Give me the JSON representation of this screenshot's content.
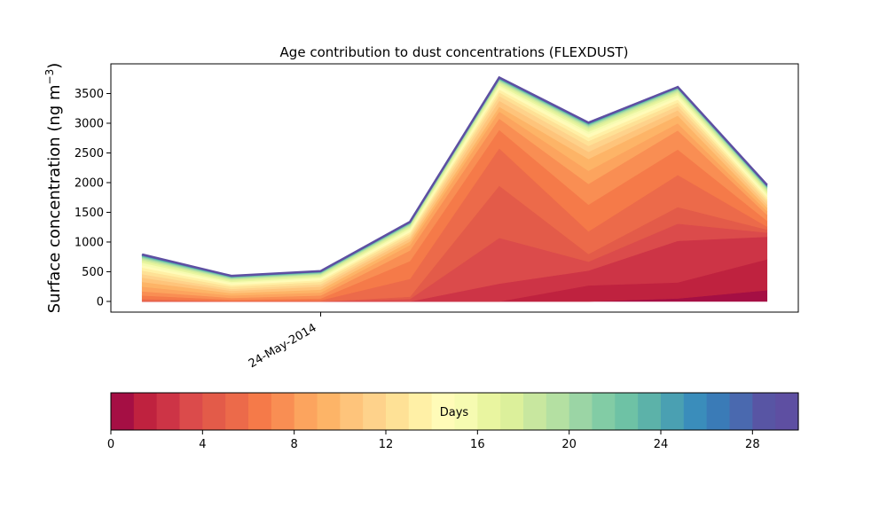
{
  "chart_data": {
    "type": "area",
    "title": "Age contribution to dust concentrations (FLEXDUST)",
    "ylabel": "Surface concentration (ng m",
    "ylabel_sup": "−3",
    "ylabel_close": ")",
    "xlabel": "",
    "x_tick_labels": [
      "24-May-2014"
    ],
    "yticks": [
      0,
      500,
      1000,
      1500,
      2000,
      2500,
      3000,
      3500
    ],
    "ylim": [
      -180,
      4000
    ],
    "x_positions": [
      0,
      1,
      2,
      3,
      4,
      5,
      6,
      7
    ],
    "xlim": [
      -0.35,
      7.35
    ],
    "x_tick_position": 2,
    "totals": [
      790,
      430,
      510,
      1340,
      3770,
      3010,
      3610,
      1960
    ],
    "layer_count": 30,
    "stack_legend": "cumulative totals; layer i shows contribution of particles aged i–(i+1) days",
    "colorbar": {
      "label": "Days",
      "range": [
        0,
        30
      ],
      "ticks": [
        0,
        4,
        8,
        12,
        16,
        20,
        24,
        28
      ],
      "colors": [
        "#a50f44",
        "#bf223f",
        "#cd3446",
        "#db4b4b",
        "#e35b49",
        "#ec6a4a",
        "#f57a49",
        "#f98e53",
        "#fca45e",
        "#fdb467",
        "#fec47b",
        "#fed28b",
        "#fee196",
        "#fff0a6",
        "#fffbb8",
        "#f6fbb1",
        "#e9f5a0",
        "#dcf09b",
        "#c8e79f",
        "#b4e0a2",
        "#9bd5a5",
        "#82cca5",
        "#6ec2a5",
        "#5cb2a9",
        "#4aa0b2",
        "#3a8dbb",
        "#3a7bb7",
        "#4a69af",
        "#5855a4",
        "#5e4fa2"
      ]
    },
    "cumulative": [
      [
        0,
        0,
        0,
        0,
        0,
        0,
        50,
        190
      ],
      [
        0,
        0,
        0,
        0,
        0,
        270,
        320,
        710
      ],
      [
        0,
        0,
        0,
        0,
        300,
        520,
        1020,
        1090
      ],
      [
        0,
        0,
        0,
        40,
        1070,
        670,
        1310,
        1160
      ],
      [
        10,
        0,
        0,
        80,
        1950,
        800,
        1590,
        1210
      ],
      [
        40,
        10,
        20,
        380,
        2580,
        1180,
        2130,
        1260
      ],
      [
        100,
        30,
        50,
        680,
        2890,
        1630,
        2560,
        1360
      ],
      [
        170,
        60,
        100,
        860,
        3080,
        1980,
        2880,
        1460
      ],
      [
        250,
        100,
        150,
        950,
        3200,
        2200,
        3000,
        1520
      ],
      [
        330,
        140,
        200,
        1010,
        3280,
        2400,
        3130,
        1580
      ],
      [
        400,
        180,
        250,
        1060,
        3380,
        2520,
        3220,
        1630
      ],
      [
        460,
        210,
        290,
        1100,
        3460,
        2620,
        3290,
        1680
      ],
      [
        520,
        250,
        330,
        1140,
        3520,
        2700,
        3350,
        1720
      ],
      [
        570,
        280,
        360,
        1170,
        3570,
        2760,
        3400,
        1760
      ],
      [
        610,
        310,
        390,
        1200,
        3610,
        2820,
        3440,
        1790
      ],
      [
        650,
        330,
        410,
        1230,
        3640,
        2860,
        3480,
        1820
      ],
      [
        680,
        350,
        430,
        1250,
        3670,
        2890,
        3510,
        1850
      ],
      [
        700,
        370,
        450,
        1270,
        3690,
        2920,
        3530,
        1870
      ],
      [
        720,
        380,
        460,
        1285,
        3705,
        2940,
        3550,
        1890
      ],
      [
        735,
        390,
        470,
        1295,
        3720,
        2955,
        3565,
        1905
      ],
      [
        745,
        400,
        480,
        1305,
        3730,
        2965,
        3575,
        1915
      ],
      [
        755,
        405,
        485,
        1312,
        3738,
        2975,
        3583,
        1925
      ],
      [
        762,
        410,
        490,
        1318,
        3745,
        2983,
        3590,
        1932
      ],
      [
        768,
        415,
        494,
        1323,
        3750,
        2989,
        3595,
        1938
      ],
      [
        773,
        419,
        498,
        1327,
        3755,
        2994,
        3599,
        1943
      ],
      [
        778,
        422,
        501,
        1331,
        3759,
        2998,
        3602,
        1948
      ],
      [
        782,
        425,
        504,
        1334,
        3763,
        3002,
        3605,
        1952
      ],
      [
        785,
        427,
        506,
        1336,
        3766,
        3005,
        3607,
        1955
      ],
      [
        788,
        429,
        508,
        1338,
        3768,
        3008,
        3609,
        1958
      ],
      [
        790,
        430,
        510,
        1340,
        3770,
        3010,
        3610,
        1960
      ]
    ]
  }
}
